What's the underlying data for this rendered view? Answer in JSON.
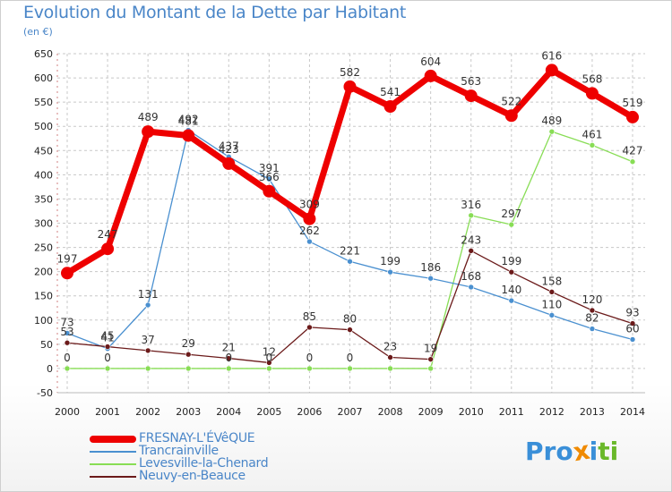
{
  "header": {
    "title": "Evolution du Montant de la Dette par Habitant",
    "unit": "(en €)"
  },
  "brand": {
    "logo_text": "Proxiti"
  },
  "colors": {
    "title": "#4a86c8",
    "fresnay": "#ee0000",
    "trancrainville": "#4a90d0",
    "levesville": "#88dd55",
    "neuvy": "#6b1a1a"
  },
  "chart_data": {
    "type": "line",
    "title": "Evolution du Montant de la Dette par Habitant",
    "subtitle": "(en €)",
    "xlabel": "",
    "ylabel": "",
    "x": [
      "2000",
      "2001",
      "2002",
      "2003",
      "2004",
      "2005",
      "2006",
      "2007",
      "2008",
      "2009",
      "2010",
      "2011",
      "2012",
      "2013",
      "2014"
    ],
    "ylim": [
      -50,
      650
    ],
    "yticks": [
      -50,
      0,
      50,
      100,
      150,
      200,
      250,
      300,
      350,
      400,
      450,
      500,
      550,
      600,
      650
    ],
    "grid": true,
    "legend_position": "bottom-left",
    "series": [
      {
        "name": "FRESNAY-L'ÉVêQUE",
        "color": "#ee0000",
        "values": [
          197,
          247,
          489,
          481,
          423,
          366,
          309,
          582,
          541,
          604,
          563,
          522,
          616,
          568,
          519
        ],
        "labels": [
          "197",
          "247",
          "489",
          "481",
          "423",
          "366",
          "309",
          "582",
          "541",
          "604",
          "563",
          "522",
          "616",
          "568",
          "519"
        ]
      },
      {
        "name": "Trancrainville",
        "color": "#4a90d0",
        "values": [
          73,
          41,
          131,
          492,
          437,
          391,
          262,
          221,
          199,
          186,
          168,
          140,
          110,
          82,
          60
        ],
        "labels": [
          "73",
          "41",
          "131",
          "492",
          "437",
          "391",
          "262",
          "221",
          "199",
          "186",
          "168",
          "140",
          "110",
          "82",
          "60"
        ]
      },
      {
        "name": "Levesville-la-Chenard",
        "color": "#88dd55",
        "values": [
          0,
          0,
          0,
          0,
          0,
          0,
          0,
          0,
          0,
          0,
          316,
          297,
          489,
          461,
          427
        ],
        "labels": [
          "0",
          "0",
          "",
          "",
          "0",
          "0",
          "0",
          "0",
          "",
          "",
          "316",
          "297",
          "489",
          "461",
          "427"
        ]
      },
      {
        "name": "Neuvy-en-Beauce",
        "color": "#6b1a1a",
        "values": [
          53,
          45,
          37,
          29,
          21,
          12,
          85,
          80,
          23,
          19,
          243,
          199,
          158,
          120,
          93
        ],
        "labels": [
          "53",
          "45",
          "37",
          "29",
          "21",
          "12",
          "85",
          "80",
          "23",
          "19",
          "243",
          "199",
          "158",
          "120",
          "93"
        ]
      }
    ]
  }
}
